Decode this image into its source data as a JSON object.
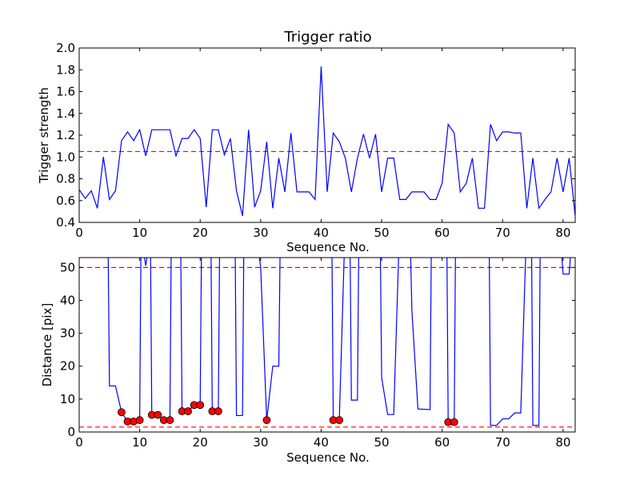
{
  "chart_data": [
    {
      "type": "line",
      "title": "Trigger ratio",
      "xlabel": "Sequence No.",
      "ylabel": "Trigger strength",
      "xlim": [
        0,
        82
      ],
      "ylim": [
        0.4,
        2.0
      ],
      "xticks": [
        "0",
        "10",
        "20",
        "30",
        "40",
        "50",
        "60",
        "70",
        "80"
      ],
      "yticks": [
        "0.4",
        "0.6",
        "0.8",
        "1.0",
        "1.2",
        "1.4",
        "1.6",
        "1.8",
        "2.0"
      ],
      "series": [
        {
          "color": "#0000ff",
          "x": [
            0,
            1,
            2,
            3,
            4,
            5,
            6,
            7,
            8,
            9,
            10,
            11,
            12,
            13,
            14,
            15,
            16,
            17,
            18,
            19,
            20,
            21,
            22,
            23,
            24,
            25,
            26,
            27,
            28,
            29,
            30,
            31,
            32,
            33,
            34,
            35,
            36,
            37,
            38,
            39,
            40,
            41,
            42,
            43,
            44,
            45,
            46,
            47,
            48,
            49,
            50,
            51,
            52,
            53,
            54,
            55,
            56,
            57,
            58,
            59,
            60,
            61,
            62,
            63,
            64,
            65,
            66,
            67,
            68,
            69,
            70,
            71,
            72,
            73,
            74,
            75,
            76,
            77,
            78,
            79,
            80,
            81,
            82
          ],
          "y": [
            0.7,
            0.62,
            0.69,
            0.53,
            1.0,
            0.61,
            0.69,
            1.15,
            1.23,
            1.15,
            1.25,
            1.01,
            1.25,
            1.25,
            1.25,
            1.25,
            1.01,
            1.17,
            1.17,
            1.25,
            1.17,
            0.54,
            1.25,
            1.25,
            1.02,
            1.17,
            0.69,
            0.46,
            1.25,
            0.54,
            0.69,
            1.14,
            0.53,
            0.99,
            0.68,
            1.22,
            0.68,
            0.68,
            0.68,
            0.61,
            1.83,
            0.68,
            1.22,
            1.14,
            0.99,
            0.68,
            0.99,
            1.21,
            0.99,
            1.21,
            0.68,
            0.99,
            0.99,
            0.61,
            0.61,
            0.68,
            0.68,
            0.68,
            0.61,
            0.61,
            0.76,
            1.3,
            1.22,
            0.68,
            0.76,
            0.99,
            0.53,
            0.53,
            1.3,
            1.15,
            1.23,
            1.23,
            1.22,
            1.22,
            0.53,
            0.99,
            0.53,
            0.61,
            0.68,
            0.99,
            0.68,
            0.99,
            0.46
          ]
        }
      ],
      "hlines": [
        {
          "y": 1.05,
          "color": "#ff0000",
          "style": "dashed"
        }
      ],
      "grid": false
    },
    {
      "type": "line",
      "title": "",
      "xlabel": "Sequence No.",
      "ylabel": "Distance [pix]",
      "xlim": [
        0,
        82
      ],
      "ylim": [
        0,
        53
      ],
      "xticks": [
        "0",
        "10",
        "20",
        "30",
        "40",
        "50",
        "60",
        "70",
        "80"
      ],
      "yticks": [
        "0",
        "10",
        "20",
        "30",
        "40",
        "50"
      ],
      "series": [
        {
          "color": "#0000ff",
          "segments": [
            [
              [
                4.8,
                53
              ],
              [
                5,
                14
              ],
              [
                6,
                14
              ],
              [
                7,
                6
              ],
              [
                8,
                3.2
              ],
              [
                9,
                3.2
              ],
              [
                10,
                3.6
              ],
              [
                10.2,
                53
              ]
            ],
            [
              [
                10.8,
                53
              ],
              [
                11,
                50.5
              ],
              [
                11.2,
                53
              ]
            ],
            [
              [
                11.8,
                53
              ],
              [
                12,
                5.2
              ],
              [
                13,
                5.2
              ],
              [
                14,
                3.6
              ],
              [
                15,
                3.6
              ],
              [
                15.2,
                53
              ]
            ],
            [
              [
                16.8,
                53
              ],
              [
                17,
                6.3
              ],
              [
                18,
                6.3
              ],
              [
                19,
                8.2
              ],
              [
                20,
                8.2
              ],
              [
                20.2,
                53
              ]
            ],
            [
              [
                21.8,
                53
              ],
              [
                22,
                6.3
              ],
              [
                23,
                6.3
              ],
              [
                23.2,
                53
              ]
            ],
            [
              [
                25.8,
                53
              ],
              [
                26,
                5
              ],
              [
                27,
                5
              ],
              [
                27.2,
                53
              ]
            ],
            [
              [
                29.8,
                53
              ],
              [
                30,
                50
              ],
              [
                31,
                3.6
              ],
              [
                32,
                20
              ],
              [
                33,
                20
              ],
              [
                33.2,
                53
              ]
            ],
            [
              [
                41.8,
                53
              ],
              [
                42,
                3.6
              ],
              [
                43,
                3.6
              ],
              [
                43.8,
                53
              ]
            ],
            [
              [
                44.8,
                53
              ],
              [
                45,
                9.7
              ],
              [
                46,
                9.7
              ],
              [
                46.2,
                53
              ]
            ],
            [
              [
                49.8,
                53
              ],
              [
                50,
                16.5
              ],
              [
                51,
                5.3
              ],
              [
                52,
                5.3
              ],
              [
                52.8,
                53
              ]
            ],
            [
              [
                54.8,
                53
              ],
              [
                55,
                37
              ],
              [
                56,
                7
              ],
              [
                58,
                6.8
              ],
              [
                58.2,
                53
              ]
            ],
            [
              [
                60.8,
                53
              ],
              [
                61,
                3
              ],
              [
                62,
                3
              ],
              [
                62.2,
                53
              ]
            ],
            [
              [
                67.8,
                53
              ],
              [
                68,
                2
              ],
              [
                69,
                2
              ],
              [
                70,
                4
              ],
              [
                71,
                4
              ],
              [
                72,
                5.8
              ],
              [
                73,
                5.8
              ],
              [
                73.8,
                53
              ]
            ],
            [
              [
                74.8,
                53
              ],
              [
                75,
                2
              ],
              [
                76,
                2
              ],
              [
                76.2,
                53
              ]
            ],
            [
              [
                79.8,
                53
              ],
              [
                80,
                48
              ],
              [
                81,
                48
              ],
              [
                81.2,
                53
              ]
            ]
          ]
        }
      ],
      "markers": {
        "color": "#ff0000",
        "edgecolor": "#000000",
        "x": [
          7,
          8,
          9,
          10,
          12,
          13,
          14,
          15,
          17,
          18,
          19,
          20,
          22,
          23,
          31,
          42,
          43,
          61,
          62
        ],
        "y": [
          6,
          3.2,
          3.2,
          3.6,
          5.2,
          5.2,
          3.6,
          3.6,
          6.3,
          6.3,
          8.2,
          8.2,
          6.3,
          6.3,
          3.6,
          3.6,
          3.6,
          3,
          3
        ]
      },
      "hlines": [
        {
          "y": 50,
          "color": "#ff0000",
          "style": "dashed"
        },
        {
          "y": 1.5,
          "color": "#ff0000",
          "style": "dashed"
        }
      ],
      "grid": false
    }
  ]
}
